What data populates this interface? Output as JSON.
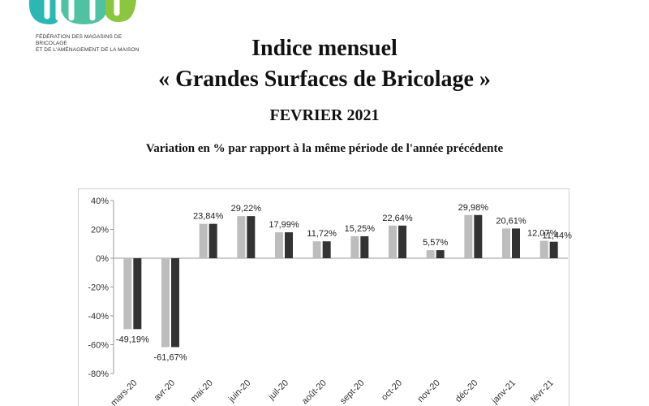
{
  "logo": {
    "line1": "FÉDÉRATION DES MAGASINS DE BRICOLAGE",
    "line2": "ET DE L'AMÉNAGEMENT DE LA MAISON",
    "colors": {
      "teal": "#2bb7b3",
      "green": "#8cc63f"
    }
  },
  "header": {
    "title_line1": "Indice mensuel",
    "title_line2": "« Grandes Surfaces de Bricolage »",
    "period": "FEVRIER 2021",
    "subtitle": "Variation en % par rapport à la même période de l'année précédente"
  },
  "chart_data": {
    "type": "bar",
    "categories": [
      "mars-20",
      "avr-20",
      "mai-20",
      "juin-20",
      "juil-20",
      "août-20",
      "sept-20",
      "oct-20",
      "nov-20",
      "déc-20",
      "janv-21",
      "févr-21"
    ],
    "series": [
      {
        "values": [
          -49.19,
          -61.67,
          23.84,
          29.22,
          17.99,
          11.72,
          15.25,
          22.64,
          5.57,
          29.98,
          20.61,
          12.07
        ],
        "color": "#bdbdbd"
      },
      {
        "values": [
          -49.19,
          -61.67,
          23.84,
          29.22,
          17.99,
          11.72,
          15.25,
          22.64,
          5.57,
          29.98,
          20.61,
          11.44
        ],
        "color": "#333333"
      }
    ],
    "data_labels": [
      "-49,19%",
      "-61,67%",
      "23,84%",
      "29,22%",
      "17,99%",
      "11,72%",
      "15,25%",
      "22,64%",
      "5,57%",
      "29,98%",
      "20,61%",
      "12,07%"
    ],
    "extra_label": "11,44%",
    "y_ticks": [
      "40%",
      "20%",
      "0%",
      "-20%",
      "-40%",
      "-60%",
      "-80%"
    ],
    "ylim": [
      -80,
      40
    ],
    "grid": false
  }
}
